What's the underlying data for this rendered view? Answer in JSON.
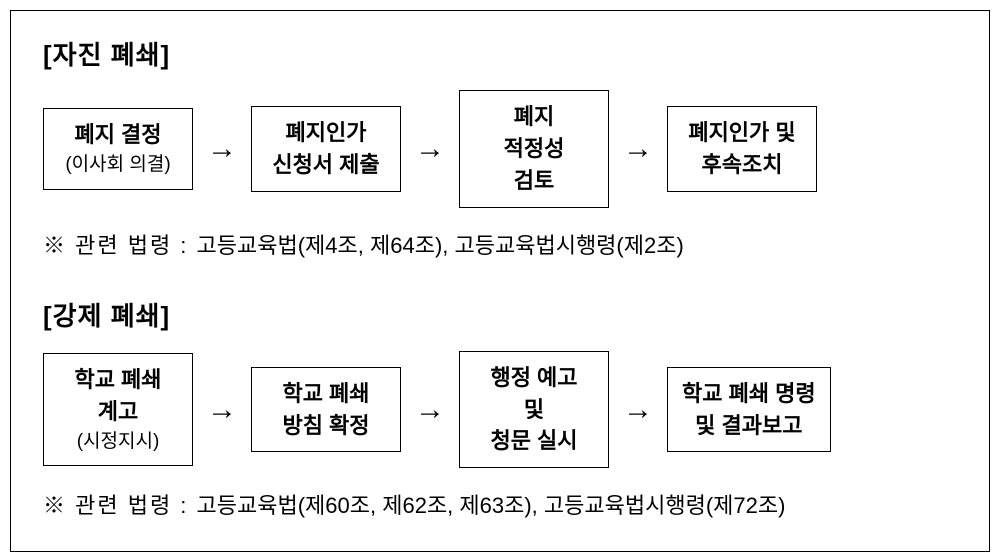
{
  "frame": {
    "border_color": "#000000",
    "background": "#ffffff"
  },
  "sections": [
    {
      "title": "[자진 폐쇄]",
      "boxes": [
        {
          "line1": "폐지 결정",
          "sub": "(이사회 의결)"
        },
        {
          "line1": "폐지인가",
          "line2": "신청서 제출"
        },
        {
          "line1": "폐지",
          "line2": "적정성",
          "line3": "검토"
        },
        {
          "line1": "폐지인가 및",
          "line2": "후속조치"
        }
      ],
      "footnote_prefix": "※  관련  법령  :  ",
      "footnote_laws": "고등교육법(제4조, 제64조), 고등교육법시행령(제2조)"
    },
    {
      "title": "[강제 폐쇄]",
      "boxes": [
        {
          "line1": "학교 폐쇄",
          "line2": "계고",
          "sub": "(시정지시)"
        },
        {
          "line1": "학교 폐쇄",
          "line2": "방침 확정"
        },
        {
          "line1": "행정 예고",
          "line2": "및",
          "line3": "청문 실시"
        },
        {
          "line1": "학교 폐쇄 명령",
          "line2": "및 결과보고"
        }
      ],
      "footnote_prefix": "※  관련  법령  :  ",
      "footnote_laws": "고등교육법(제60조, 제62조, 제63조), 고등교육법시행령(제72조)"
    }
  ],
  "arrow_glyph": "→",
  "styles": {
    "title_fontsize": 26,
    "box_fontsize": 22,
    "sub_fontsize": 19,
    "footnote_fontsize": 22,
    "arrow_fontsize": 30,
    "box_border_color": "#000000",
    "text_color": "#000000"
  }
}
